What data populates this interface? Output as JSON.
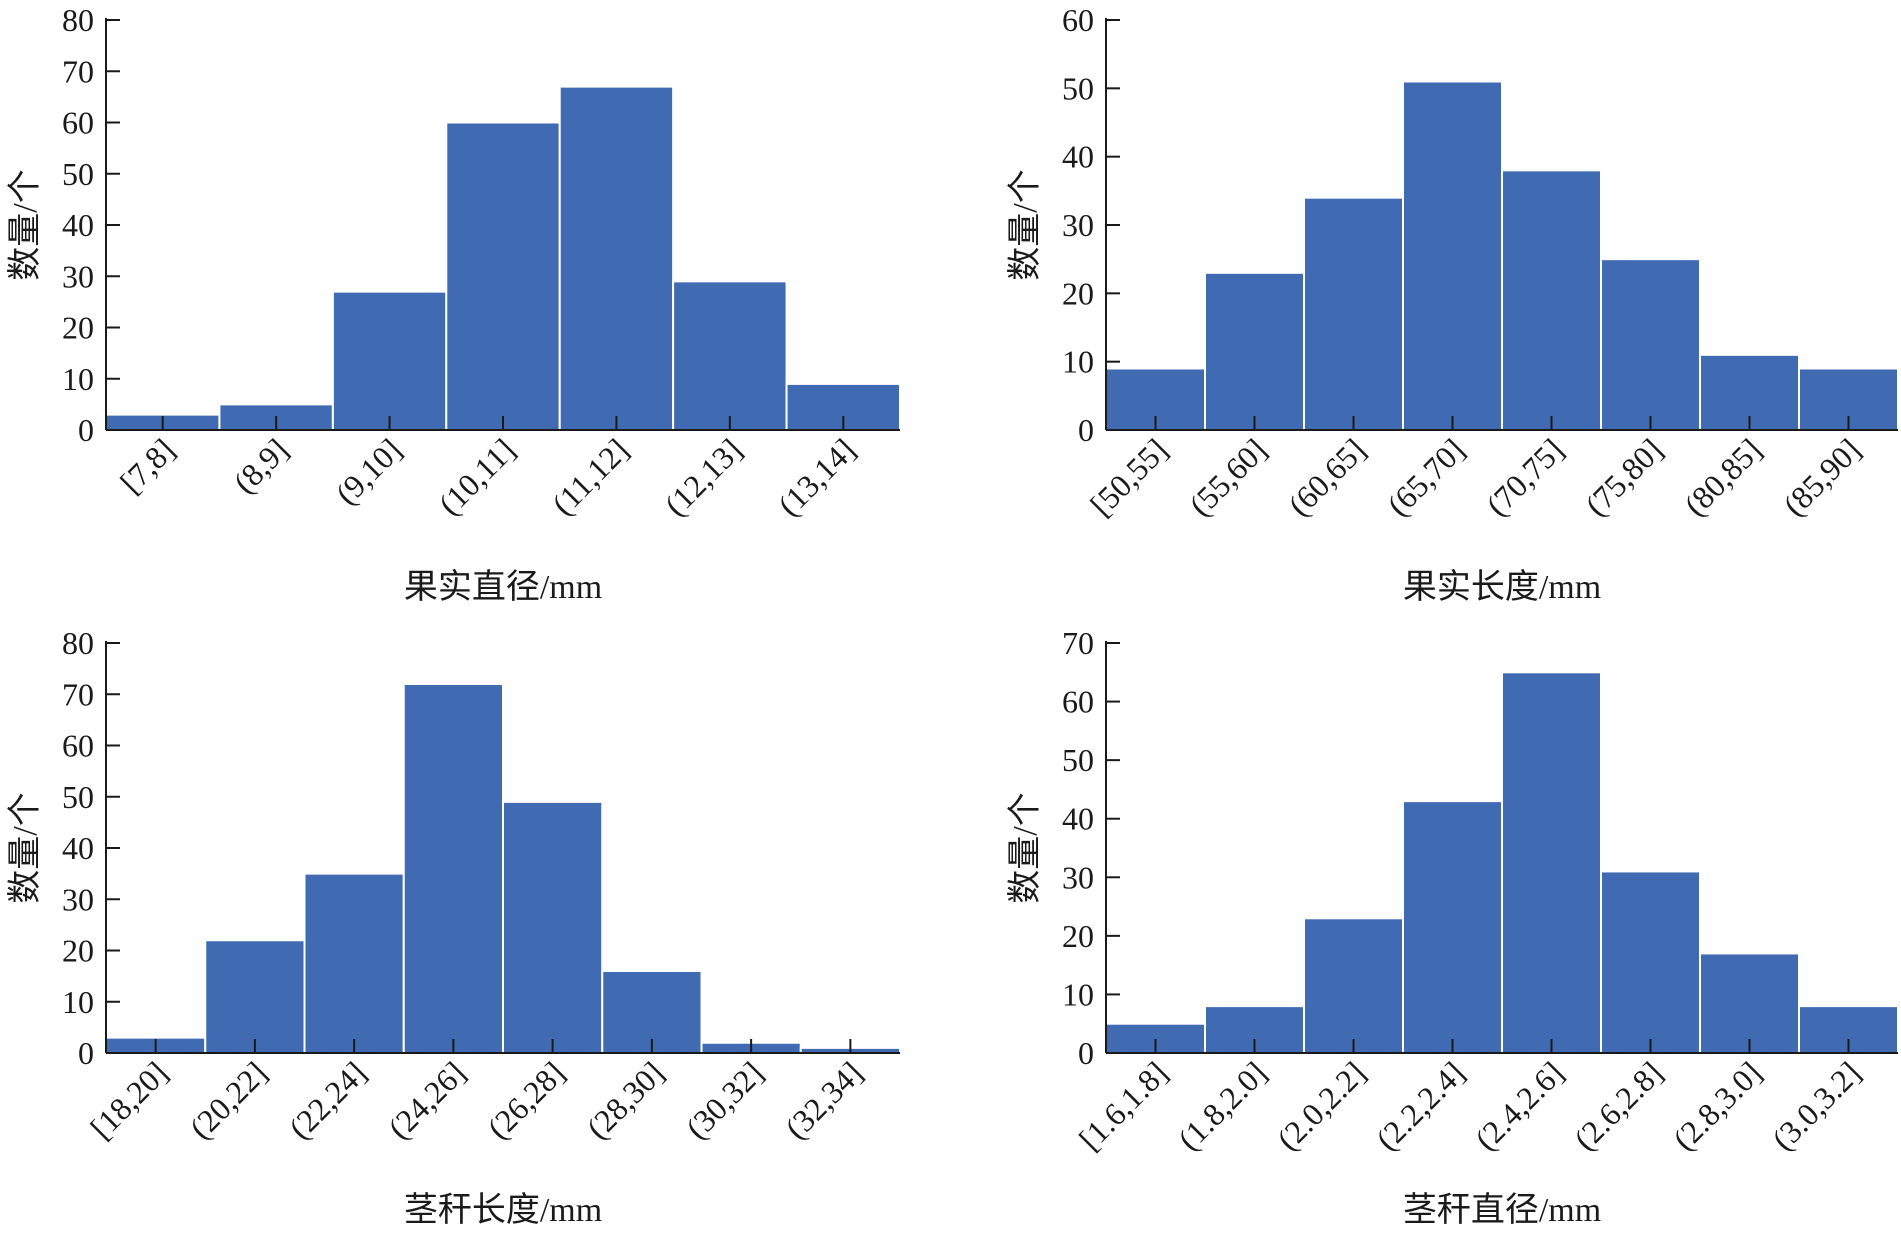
{
  "chart_data": [
    {
      "type": "bar",
      "categories": [
        "[7,8]",
        "(8,9]",
        "(9,10]",
        "(10,11]",
        "(11,12]",
        "(12,13]",
        "(13,14]"
      ],
      "values": [
        3,
        5,
        27,
        60,
        67,
        29,
        9
      ],
      "xlabel": "果实直径/mm",
      "ylabel": "数量/个",
      "ylim": [
        0,
        80
      ],
      "yticks": [
        "0",
        "10",
        "20",
        "30",
        "40",
        "50",
        "60",
        "70",
        "80"
      ],
      "bar_color": "#406ab2",
      "grid": false
    },
    {
      "type": "bar",
      "categories": [
        "[50,55]",
        "(55,60]",
        "(60,65]",
        "(65,70]",
        "(70,75]",
        "(75,80]",
        "(80,85]",
        "(85,90]"
      ],
      "values": [
        9,
        23,
        34,
        51,
        38,
        25,
        11,
        9
      ],
      "xlabel": "果实长度/mm",
      "ylabel": "数量/个",
      "ylim": [
        0,
        60
      ],
      "yticks": [
        "0",
        "10",
        "20",
        "30",
        "40",
        "50",
        "60"
      ],
      "bar_color": "#406ab2",
      "grid": false
    },
    {
      "type": "bar",
      "categories": [
        "[18,20]",
        "(20,22]",
        "(22,24]",
        "(24,26]",
        "(26,28]",
        "(28,30]",
        "(30,32]",
        "(32,34]"
      ],
      "values": [
        3,
        22,
        35,
        72,
        49,
        16,
        2,
        1
      ],
      "xlabel": "茎秆长度/mm",
      "ylabel": "数量/个",
      "ylim": [
        0,
        80
      ],
      "yticks": [
        "0",
        "10",
        "20",
        "30",
        "40",
        "50",
        "60",
        "70",
        "80"
      ],
      "bar_color": "#406ab2",
      "grid": false
    },
    {
      "type": "bar",
      "categories": [
        "[1.6,1.8]",
        "(1.8,2.0]",
        "(2.0,2.2]",
        "(2.2,2.4]",
        "(2.4,2.6]",
        "(2.6,2.8]",
        "(2.8,3.0]",
        "(3.0,3.2]"
      ],
      "values": [
        5,
        8,
        23,
        43,
        65,
        31,
        17,
        8
      ],
      "xlabel": "茎秆直径/mm",
      "ylabel": "数量/个",
      "ylim": [
        0,
        70
      ],
      "yticks": [
        "0",
        "10",
        "20",
        "30",
        "40",
        "50",
        "60",
        "70"
      ],
      "bar_color": "#406ab2",
      "grid": false
    }
  ]
}
